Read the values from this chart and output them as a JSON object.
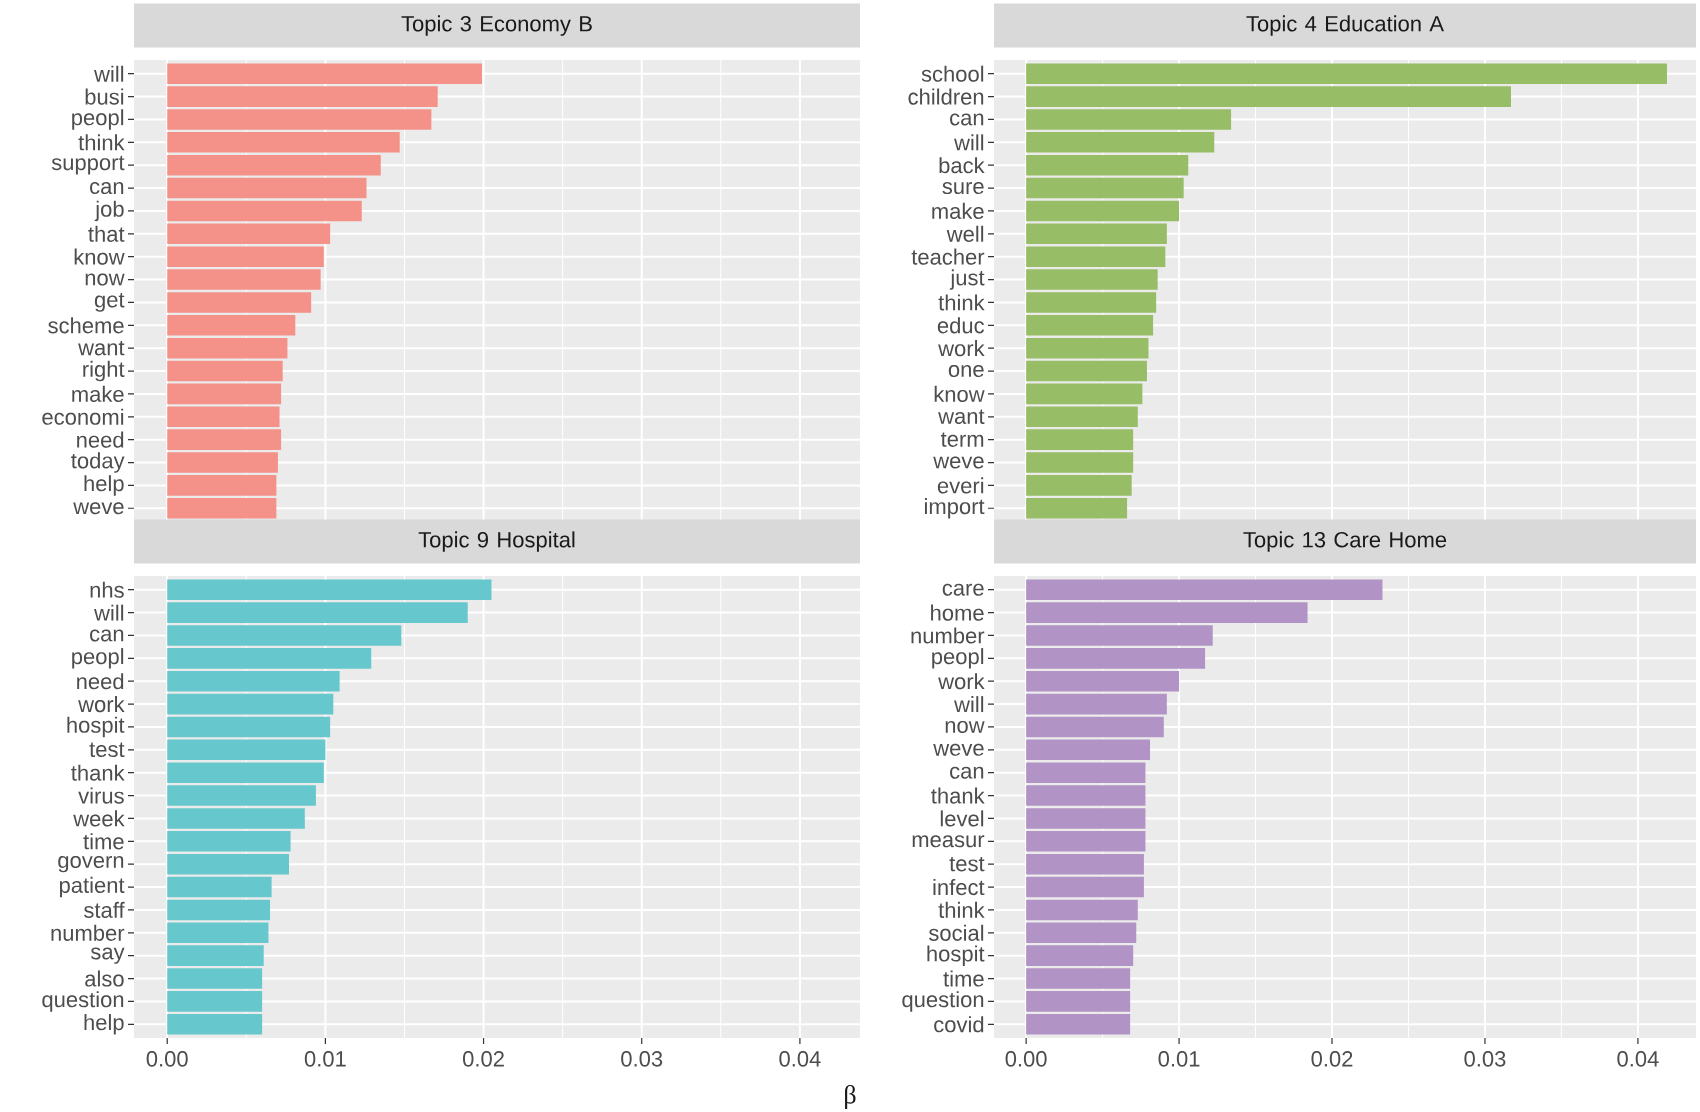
{
  "chart_data": [
    {
      "type": "bar",
      "orientation": "horizontal",
      "title": "Topic 3 Economy B",
      "color": "#f4928a",
      "grid": true,
      "tick_labels": "y",
      "categories": [
        "will",
        "busi",
        "peopl",
        "think",
        "support",
        "can",
        "job",
        "that",
        "know",
        "now",
        "get",
        "scheme",
        "want",
        "right",
        "make",
        "economi",
        "need",
        "today",
        "help",
        "weve"
      ],
      "values": [
        0.0199,
        0.0171,
        0.0167,
        0.0147,
        0.0135,
        0.0126,
        0.0123,
        0.0103,
        0.0099,
        0.0097,
        0.0091,
        0.0081,
        0.0076,
        0.0073,
        0.0072,
        0.0071,
        0.0072,
        0.007,
        0.0069,
        0.0069
      ],
      "xlim": [
        -0.0021,
        0.0438
      ],
      "xticks": [
        {
          "value": 0,
          "label": null
        },
        {
          "value": 0.01,
          "label": null
        },
        {
          "value": 0.02,
          "label": null
        },
        {
          "value": 0.03,
          "label": null
        },
        {
          "value": 0.04,
          "label": null
        }
      ]
    },
    {
      "type": "bar",
      "orientation": "horizontal",
      "title": "Topic 4 Education A",
      "color": "#97bd66",
      "grid": true,
      "tick_labels": "y",
      "categories": [
        "school",
        "children",
        "can",
        "will",
        "back",
        "sure",
        "make",
        "well",
        "teacher",
        "just",
        "think",
        "educ",
        "work",
        "one",
        "know",
        "want",
        "term",
        "weve",
        "everi",
        "import"
      ],
      "values": [
        0.0419,
        0.0317,
        0.0134,
        0.0123,
        0.0106,
        0.0103,
        0.01,
        0.0092,
        0.0091,
        0.0086,
        0.0085,
        0.0083,
        0.008,
        0.0079,
        0.0076,
        0.0073,
        0.007,
        0.007,
        0.0069,
        0.0066
      ],
      "xlim": [
        -0.0021,
        0.0438
      ],
      "xticks": [
        {
          "value": 0,
          "label": null
        },
        {
          "value": 0.01,
          "label": null
        },
        {
          "value": 0.02,
          "label": null
        },
        {
          "value": 0.03,
          "label": null
        },
        {
          "value": 0.04,
          "label": null
        }
      ]
    },
    {
      "type": "bar",
      "orientation": "horizontal",
      "title": "Topic 9 Hospital",
      "color": "#66c8cc",
      "grid": true,
      "xlabel": "β",
      "categories": [
        "nhs",
        "will",
        "can",
        "peopl",
        "need",
        "work",
        "hospit",
        "test",
        "thank",
        "virus",
        "week",
        "time",
        "govern",
        "patient",
        "staff",
        "number",
        "say",
        "also",
        "question",
        "help"
      ],
      "values": [
        0.0205,
        0.019,
        0.0148,
        0.0129,
        0.0109,
        0.0105,
        0.0103,
        0.01,
        0.0099,
        0.0094,
        0.0087,
        0.0078,
        0.0077,
        0.0066,
        0.0065,
        0.0064,
        0.0061,
        0.006,
        0.006,
        0.006
      ],
      "xlim": [
        -0.0021,
        0.0438
      ],
      "xticks": [
        {
          "value": 0,
          "label": "0.00"
        },
        {
          "value": 0.01,
          "label": "0.01"
        },
        {
          "value": 0.02,
          "label": "0.02"
        },
        {
          "value": 0.03,
          "label": "0.03"
        },
        {
          "value": 0.04,
          "label": "0.04"
        }
      ]
    },
    {
      "type": "bar",
      "orientation": "horizontal",
      "title": "Topic 13 Care Home",
      "color": "#b293c5",
      "grid": true,
      "categories": [
        "care",
        "home",
        "number",
        "peopl",
        "work",
        "will",
        "now",
        "weve",
        "can",
        "thank",
        "level",
        "measur",
        "test",
        "infect",
        "think",
        "social",
        "hospit",
        "time",
        "question",
        "covid"
      ],
      "values": [
        0.0233,
        0.0184,
        0.0122,
        0.0117,
        0.01,
        0.0092,
        0.009,
        0.0081,
        0.0078,
        0.0078,
        0.0078,
        0.0078,
        0.0077,
        0.0077,
        0.0073,
        0.0072,
        0.007,
        0.0068,
        0.0068,
        0.0068
      ],
      "xlim": [
        -0.0021,
        0.0438
      ],
      "xticks": [
        {
          "value": 0,
          "label": "0.00"
        },
        {
          "value": 0.01,
          "label": "0.01"
        },
        {
          "value": 0.02,
          "label": "0.02"
        },
        {
          "value": 0.03,
          "label": "0.03"
        },
        {
          "value": 0.04,
          "label": "0.04"
        }
      ]
    }
  ]
}
